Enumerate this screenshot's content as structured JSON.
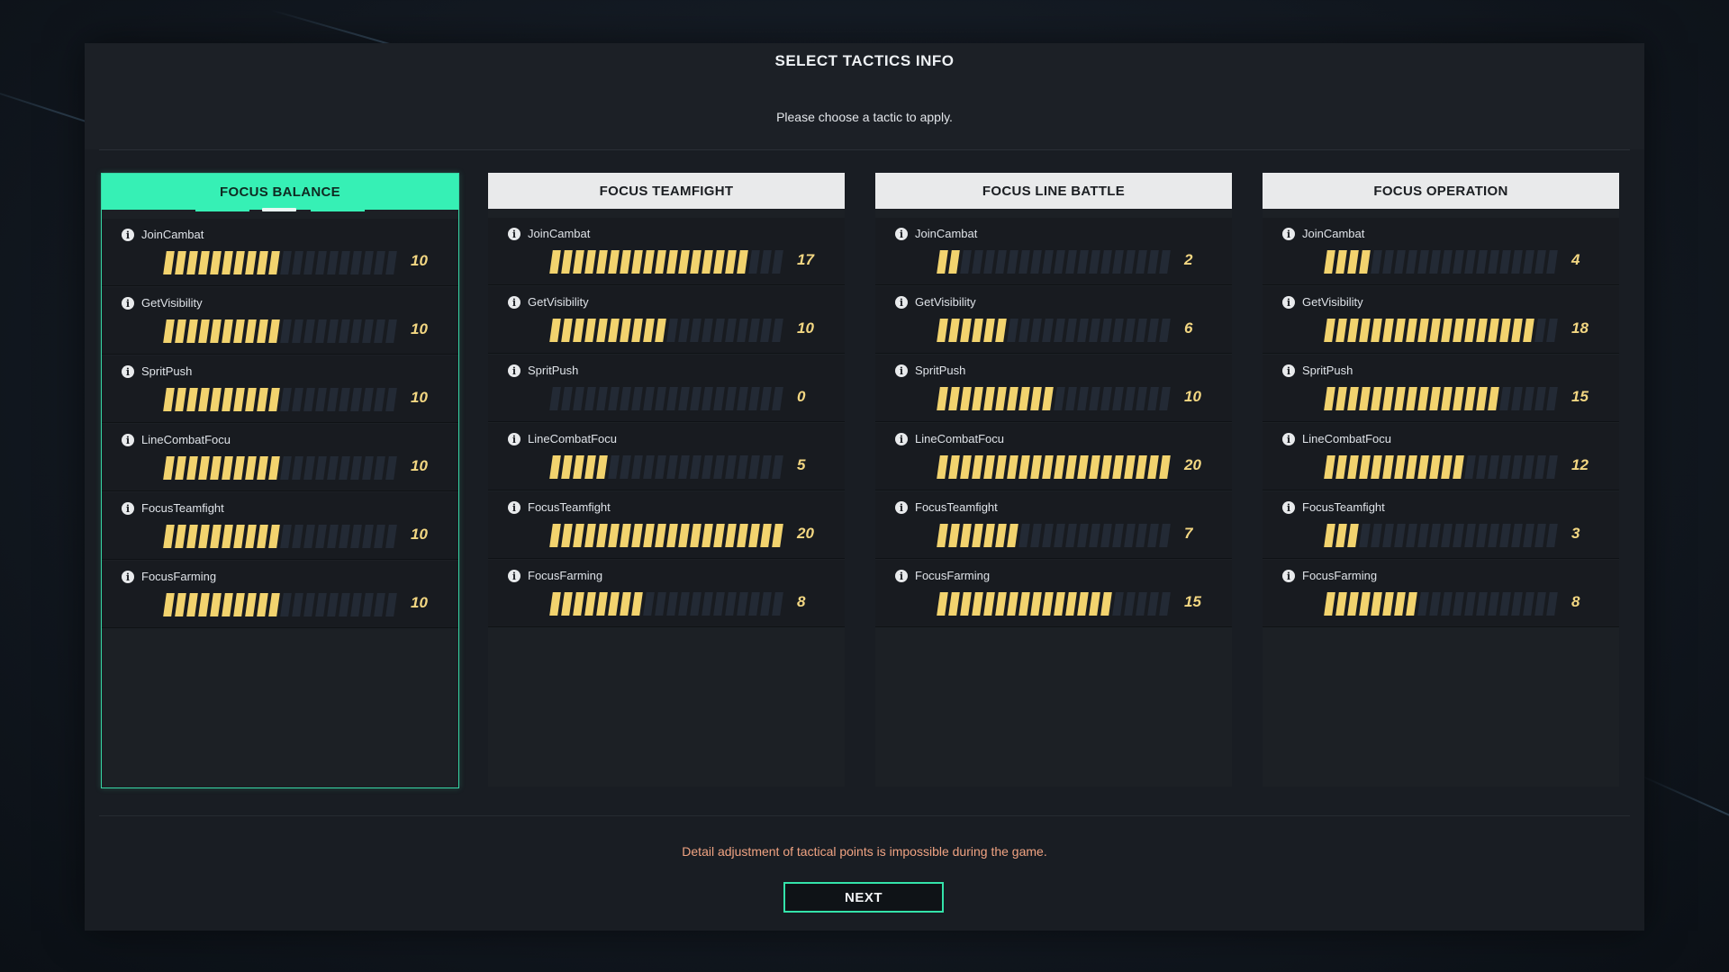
{
  "dialog": {
    "title": "SELECT TACTICS INFO",
    "subtitle": "Please choose a tactic to apply."
  },
  "tactics": [
    {
      "name": "FOCUS BALANCE",
      "selected": true,
      "stats": [
        {
          "label": "JoinCambat",
          "value": 10
        },
        {
          "label": "GetVisibility",
          "value": 10
        },
        {
          "label": "SpritPush",
          "value": 10
        },
        {
          "label": "LineCombatFocu",
          "value": 10
        },
        {
          "label": "FocusTeamfight",
          "value": 10
        },
        {
          "label": "FocusFarming",
          "value": 10
        }
      ]
    },
    {
      "name": "FOCUS TEAMFIGHT",
      "selected": false,
      "stats": [
        {
          "label": "JoinCambat",
          "value": 17
        },
        {
          "label": "GetVisibility",
          "value": 10
        },
        {
          "label": "SpritPush",
          "value": 0
        },
        {
          "label": "LineCombatFocu",
          "value": 5
        },
        {
          "label": "FocusTeamfight",
          "value": 20
        },
        {
          "label": "FocusFarming",
          "value": 8
        }
      ]
    },
    {
      "name": "FOCUS LINE BATTLE",
      "selected": false,
      "stats": [
        {
          "label": "JoinCambat",
          "value": 2
        },
        {
          "label": "GetVisibility",
          "value": 6
        },
        {
          "label": "SpritPush",
          "value": 10
        },
        {
          "label": "LineCombatFocu",
          "value": 20
        },
        {
          "label": "FocusTeamfight",
          "value": 7
        },
        {
          "label": "FocusFarming",
          "value": 15
        }
      ]
    },
    {
      "name": "FOCUS OPERATION",
      "selected": false,
      "stats": [
        {
          "label": "JoinCambat",
          "value": 4
        },
        {
          "label": "GetVisibility",
          "value": 18
        },
        {
          "label": "SpritPush",
          "value": 15
        },
        {
          "label": "LineCombatFocu",
          "value": 12
        },
        {
          "label": "FocusTeamfight",
          "value": 3
        },
        {
          "label": "FocusFarming",
          "value": 8
        }
      ]
    }
  ],
  "bar_max": 20,
  "info_icon": "info-circle-icon",
  "footer": {
    "note": "Detail adjustment of tactical points is impossible during the game.",
    "next_label": "NEXT"
  },
  "colors": {
    "accent": "#36f0b5",
    "bar_fill": "#f2d36e",
    "bar_empty": "#232a35",
    "note": "#f0a382"
  }
}
